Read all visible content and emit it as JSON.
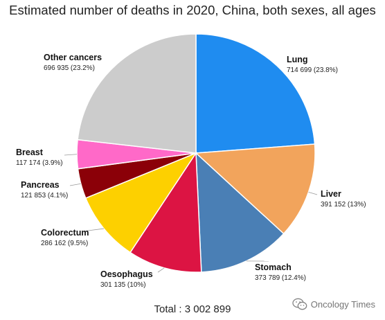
{
  "chart_data": {
    "type": "pie",
    "title": "Estimated number of deaths in 2020, China, both sexes, all ages",
    "slices": [
      {
        "name": "Lung",
        "value": 714699,
        "value_label": "714 699 (23.8%)",
        "percent": 23.8,
        "color": "#1f8cf0"
      },
      {
        "name": "Liver",
        "value": 391152,
        "value_label": "391 152 (13%)",
        "percent": 13.0,
        "color": "#f2a45c"
      },
      {
        "name": "Stomach",
        "value": 373789,
        "value_label": "373 789 (12.4%)",
        "percent": 12.4,
        "color": "#4a7fb5"
      },
      {
        "name": "Oesophagus",
        "value": 301135,
        "value_label": "301 135 (10%)",
        "percent": 10.0,
        "color": "#dc1443"
      },
      {
        "name": "Colorectum",
        "value": 286162,
        "value_label": "286 162 (9.5%)",
        "percent": 9.5,
        "color": "#fdd000"
      },
      {
        "name": "Pancreas",
        "value": 121853,
        "value_label": "121 853 (4.1%)",
        "percent": 4.1,
        "color": "#8b0008"
      },
      {
        "name": "Breast",
        "value": 117174,
        "value_label": "117 174 (3.9%)",
        "percent": 3.9,
        "color": "#ff69c8"
      },
      {
        "name": "Other cancers",
        "value": 696935,
        "value_label": "696 935 (23.2%)",
        "percent": 23.2,
        "color": "#cccccc"
      }
    ],
    "total_label": "Total : 3 002 899"
  },
  "watermark": {
    "text": "Oncology Times",
    "icon": "wechat-logo-icon"
  }
}
